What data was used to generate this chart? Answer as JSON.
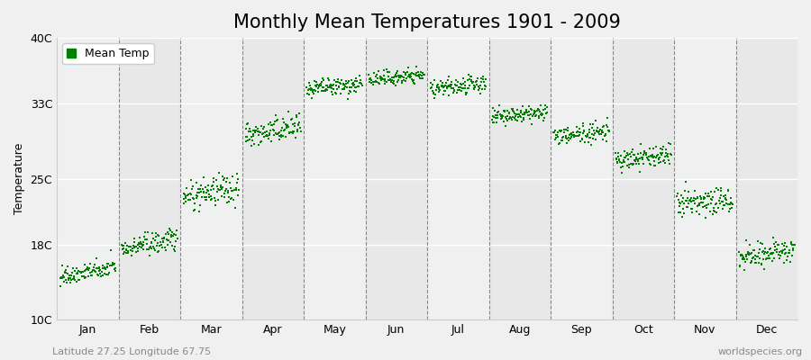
{
  "title": "Monthly Mean Temperatures 1901 - 2009",
  "ylabel": "Temperature",
  "xlabel": "",
  "ytick_labels": [
    "10C",
    "18C",
    "25C",
    "33C",
    "40C"
  ],
  "ytick_values": [
    10,
    18,
    25,
    33,
    40
  ],
  "ylim": [
    10,
    40
  ],
  "months": [
    "Jan",
    "Feb",
    "Mar",
    "Apr",
    "May",
    "Jun",
    "Jul",
    "Aug",
    "Sep",
    "Oct",
    "Nov",
    "Dec"
  ],
  "xlim": [
    0,
    12
  ],
  "dot_color": "#008000",
  "dot_size": 3,
  "bg_color": "#f0f0f0",
  "band_colors": [
    "#f0f0f0",
    "#e8e8e8"
  ],
  "month_mean_temps": [
    14.5,
    17.5,
    23.0,
    29.5,
    34.5,
    35.5,
    34.5,
    31.5,
    29.5,
    27.0,
    22.0,
    16.5
  ],
  "month_std_temps": [
    1.2,
    1.5,
    2.0,
    1.8,
    1.2,
    1.0,
    1.2,
    1.2,
    1.2,
    1.5,
    2.0,
    1.5
  ],
  "month_trend": [
    0.01,
    0.01,
    0.01,
    0.01,
    0.005,
    0.005,
    0.005,
    0.005,
    0.005,
    0.005,
    0.01,
    0.01
  ],
  "n_years": 109,
  "seed": 42,
  "footer_left": "Latitude 27.25 Longitude 67.75",
  "footer_right": "worldspecies.org",
  "legend_label": "Mean Temp",
  "title_fontsize": 15,
  "axis_label_fontsize": 9,
  "tick_fontsize": 9,
  "footer_fontsize": 8
}
